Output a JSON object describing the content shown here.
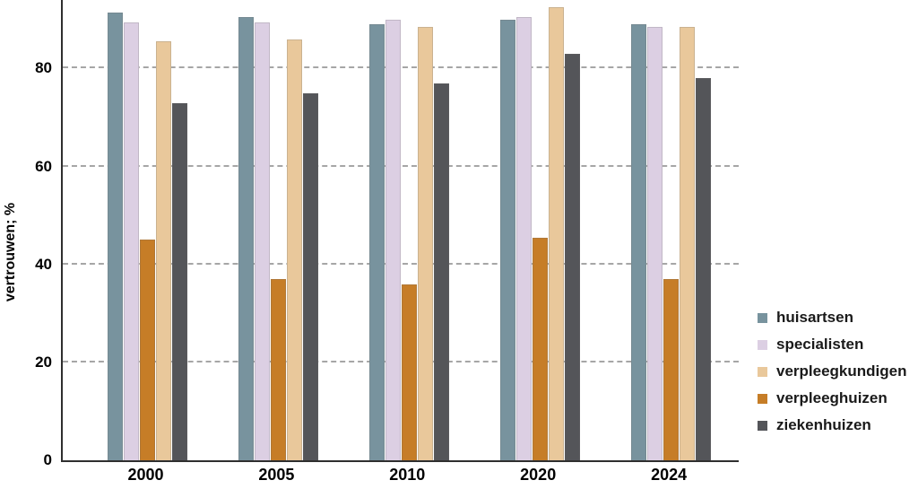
{
  "chart_data": {
    "type": "bar",
    "ylabel": "vertrouwen; %",
    "categories": [
      "2000",
      "2005",
      "2010",
      "2020",
      "2024"
    ],
    "series": [
      {
        "name": "huisartsen",
        "color": "#78939e",
        "values": [
          91.5,
          90.5,
          89,
          90,
          89
        ]
      },
      {
        "name": "specialisten",
        "color": "#dccfe3",
        "values": [
          89.5,
          89.5,
          90,
          90.5,
          88.5
        ]
      },
      {
        "name": "verpleegkundigen",
        "color": "#e9c89b",
        "values": [
          85.5,
          86,
          88.5,
          92.5,
          88.5
        ]
      },
      {
        "name": "verpleeghuizen",
        "color": "#c67d27",
        "values": [
          45,
          37,
          36,
          45.5,
          37
        ]
      },
      {
        "name": "ziekenhuizen",
        "color": "#545559",
        "values": [
          73,
          75,
          77,
          83,
          78
        ]
      }
    ],
    "bar_order": [
      "huisartsen",
      "specialisten",
      "verpleeghuizen",
      "verpleegkundigen",
      "ziekenhuizen"
    ],
    "yticks": [
      0,
      20,
      40,
      60,
      80
    ],
    "ylim": [
      0,
      94
    ],
    "grid": "horizontal dashed, at yticks above 0",
    "legend_position": "right",
    "colors": {
      "axis": "#2f2f2f",
      "grid": "#a6a6a6",
      "text": "#000000"
    }
  }
}
